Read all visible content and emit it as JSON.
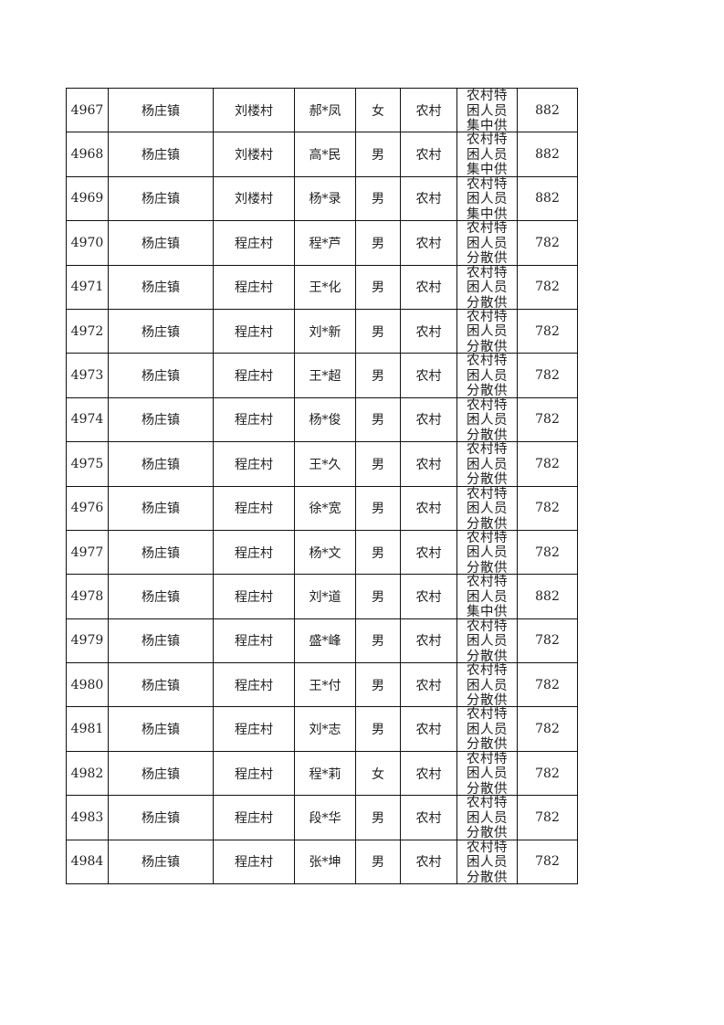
{
  "table": {
    "rows": [
      {
        "id": "4967",
        "town": "杨庄镇",
        "village": "刘楼村",
        "name": "郝*凤",
        "gender": "女",
        "area": "农村",
        "category": "农村特困人员集中供养",
        "amount": "882"
      },
      {
        "id": "4968",
        "town": "杨庄镇",
        "village": "刘楼村",
        "name": "高*民",
        "gender": "男",
        "area": "农村",
        "category": "农村特困人员集中供养",
        "amount": "882"
      },
      {
        "id": "4969",
        "town": "杨庄镇",
        "village": "刘楼村",
        "name": "杨*录",
        "gender": "男",
        "area": "农村",
        "category": "农村特困人员集中供养",
        "amount": "882"
      },
      {
        "id": "4970",
        "town": "杨庄镇",
        "village": "程庄村",
        "name": "程*芦",
        "gender": "男",
        "area": "农村",
        "category": "农村特困人员分散供养",
        "amount": "782"
      },
      {
        "id": "4971",
        "town": "杨庄镇",
        "village": "程庄村",
        "name": "王*化",
        "gender": "男",
        "area": "农村",
        "category": "农村特困人员分散供养",
        "amount": "782"
      },
      {
        "id": "4972",
        "town": "杨庄镇",
        "village": "程庄村",
        "name": "刘*新",
        "gender": "男",
        "area": "农村",
        "category": "农村特困人员分散供养",
        "amount": "782"
      },
      {
        "id": "4973",
        "town": "杨庄镇",
        "village": "程庄村",
        "name": "王*超",
        "gender": "男",
        "area": "农村",
        "category": "农村特困人员分散供养",
        "amount": "782"
      },
      {
        "id": "4974",
        "town": "杨庄镇",
        "village": "程庄村",
        "name": "杨*俊",
        "gender": "男",
        "area": "农村",
        "category": "农村特困人员分散供养",
        "amount": "782"
      },
      {
        "id": "4975",
        "town": "杨庄镇",
        "village": "程庄村",
        "name": "王*久",
        "gender": "男",
        "area": "农村",
        "category": "农村特困人员分散供养",
        "amount": "782"
      },
      {
        "id": "4976",
        "town": "杨庄镇",
        "village": "程庄村",
        "name": "徐*宽",
        "gender": "男",
        "area": "农村",
        "category": "农村特困人员分散供养",
        "amount": "782"
      },
      {
        "id": "4977",
        "town": "杨庄镇",
        "village": "程庄村",
        "name": "杨*文",
        "gender": "男",
        "area": "农村",
        "category": "农村特困人员分散供养",
        "amount": "782"
      },
      {
        "id": "4978",
        "town": "杨庄镇",
        "village": "程庄村",
        "name": "刘*道",
        "gender": "男",
        "area": "农村",
        "category": "农村特困人员集中供养",
        "amount": "882"
      },
      {
        "id": "4979",
        "town": "杨庄镇",
        "village": "程庄村",
        "name": "盛*峰",
        "gender": "男",
        "area": "农村",
        "category": "农村特困人员分散供养",
        "amount": "782"
      },
      {
        "id": "4980",
        "town": "杨庄镇",
        "village": "程庄村",
        "name": "王*付",
        "gender": "男",
        "area": "农村",
        "category": "农村特困人员分散供养",
        "amount": "782"
      },
      {
        "id": "4981",
        "town": "杨庄镇",
        "village": "程庄村",
        "name": "刘*志",
        "gender": "男",
        "area": "农村",
        "category": "农村特困人员分散供养",
        "amount": "782"
      },
      {
        "id": "4982",
        "town": "杨庄镇",
        "village": "程庄村",
        "name": "程*莉",
        "gender": "女",
        "area": "农村",
        "category": "农村特困人员分散供养",
        "amount": "782"
      },
      {
        "id": "4983",
        "town": "杨庄镇",
        "village": "程庄村",
        "name": "段*华",
        "gender": "男",
        "area": "农村",
        "category": "农村特困人员分散供养",
        "amount": "782"
      },
      {
        "id": "4984",
        "town": "杨庄镇",
        "village": "程庄村",
        "name": "张*坤",
        "gender": "男",
        "area": "农村",
        "category": "农村特困人员分散供养",
        "amount": "782"
      }
    ]
  }
}
